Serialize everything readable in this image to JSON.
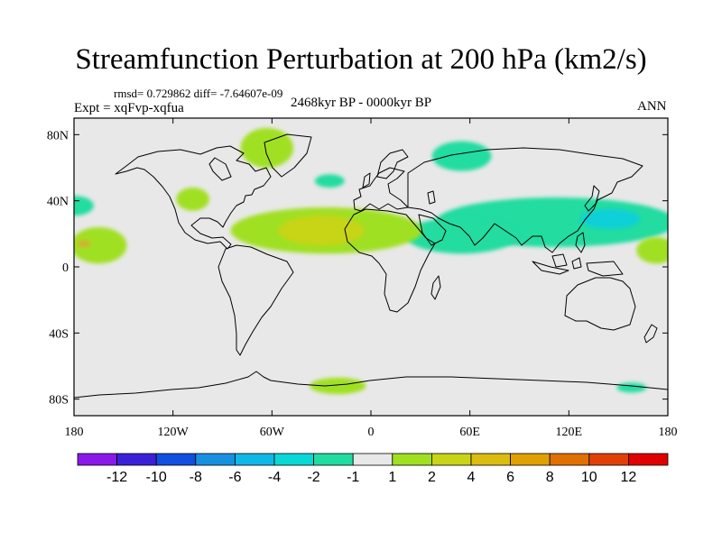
{
  "title": "Streamfunction Perturbation at 200 hPa (km2/s)",
  "stats": "rmsd= 0.729862 diff= -7.64607e-09",
  "experiment": "Expt = xqFvp-xqfua",
  "period": "2468kyr BP - 0000kyr BP",
  "season": "ANN",
  "map": {
    "lon_range": [
      -180,
      180
    ],
    "lat_range": [
      -90,
      90
    ],
    "background_color": "#e8e8e8",
    "lat_ticks": [
      {
        "value": 80,
        "label": "80N"
      },
      {
        "value": 40,
        "label": "40N"
      },
      {
        "value": 0,
        "label": "0"
      },
      {
        "value": -40,
        "label": "40S"
      },
      {
        "value": -80,
        "label": "80S"
      }
    ],
    "lon_ticks": [
      {
        "value": -180,
        "label": "180"
      },
      {
        "value": -120,
        "label": "120W"
      },
      {
        "value": -60,
        "label": "60W"
      },
      {
        "value": 0,
        "label": "0"
      },
      {
        "value": 60,
        "label": "60E"
      },
      {
        "value": 120,
        "label": "120E"
      },
      {
        "value": 180,
        "label": "180"
      }
    ],
    "anomalies": [
      {
        "lon": 55,
        "lat": 67,
        "rlon": 18,
        "rlat": 9,
        "color": "#20dca0"
      },
      {
        "lon": -25,
        "lat": 52,
        "rlon": 9,
        "rlat": 4,
        "color": "#20dca0"
      },
      {
        "lon": -180,
        "lat": 37,
        "rlon": 12,
        "rlat": 6,
        "color": "#20dca0"
      },
      {
        "lon": 158,
        "lat": -73,
        "rlon": 9,
        "rlat": 3,
        "color": "#20dca0"
      },
      {
        "lon": 112,
        "lat": 27,
        "rlon": 73,
        "rlat": 15,
        "color": "#20dca0"
      },
      {
        "lon": 55,
        "lat": 19,
        "rlon": 34,
        "rlat": 11,
        "color": "#20dca0"
      },
      {
        "lon": 145,
        "lat": 29,
        "rlon": 18,
        "rlat": 6,
        "color": "#0ad0d8"
      },
      {
        "lon": -63,
        "lat": 72,
        "rlon": 16,
        "rlat": 12,
        "color": "#a0e020"
      },
      {
        "lon": -108,
        "lat": 41,
        "rlon": 10,
        "rlat": 7,
        "color": "#a0e020"
      },
      {
        "lon": -165,
        "lat": 13,
        "rlon": 17,
        "rlat": 11,
        "color": "#a0e020"
      },
      {
        "lon": -27,
        "lat": 22,
        "rlon": 58,
        "rlat": 14,
        "color": "#a0e020"
      },
      {
        "lon": -30,
        "lat": 22,
        "rlon": 26,
        "rlat": 9,
        "color": "#c8d418"
      },
      {
        "lon": -20,
        "lat": -72,
        "rlon": 17,
        "rlat": 5,
        "color": "#a0e020"
      },
      {
        "lon": 173,
        "lat": 10,
        "rlon": 12,
        "rlat": 8,
        "color": "#a0e020"
      },
      {
        "lon": -174,
        "lat": 14,
        "rlon": 4,
        "rlat": 2,
        "color": "#d8ae30"
      }
    ]
  },
  "colorbar": {
    "colors": [
      "#8a18e8",
      "#3a20d8",
      "#1050e0",
      "#1890e0",
      "#10b8e8",
      "#08d8d8",
      "#20dca0",
      "#e8e8e8",
      "#a0e020",
      "#c8d418",
      "#dcbc10",
      "#e0a000",
      "#e07000",
      "#e04008",
      "#e00000"
    ],
    "labels": [
      "-12",
      "-10",
      "-8",
      "-6",
      "-4",
      "-2",
      "-1",
      "1",
      "2",
      "4",
      "6",
      "8",
      "10",
      "12"
    ]
  }
}
